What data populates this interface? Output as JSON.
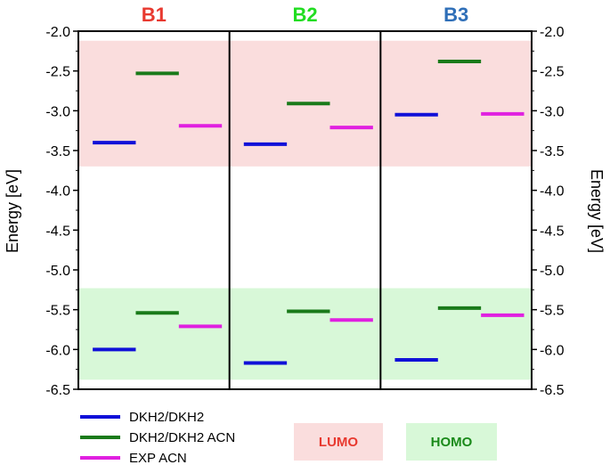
{
  "chart_data": {
    "type": "scatter",
    "chart_style": "energy-level diagram",
    "panels": [
      "B1",
      "B2",
      "B3"
    ],
    "panel_title_colors": [
      "#e8392f",
      "#22dd22",
      "#2f6fb8"
    ],
    "ylabel_left": "Energy [eV]",
    "ylabel_right": "Energy [eV]",
    "ylim": [
      -6.5,
      -2.0
    ],
    "y_ticks": [
      "-2.0",
      "-2.5",
      "-3.0",
      "-3.5",
      "-4.0",
      "-4.5",
      "-5.0",
      "-5.5",
      "-6.0",
      "-6.5"
    ],
    "y_tick_values": [
      -2.0,
      -2.5,
      -3.0,
      -3.5,
      -4.0,
      -4.5,
      -5.0,
      -5.5,
      -6.0,
      -6.5
    ],
    "series": [
      {
        "name": "DKH2/DKH2",
        "color": "#1010d8",
        "lumo": [
          -3.4,
          -3.42,
          -3.05
        ],
        "homo": [
          -6.0,
          -6.17,
          -6.13
        ]
      },
      {
        "name": "DKH2/DKH2 ACN",
        "color": "#1a7a1a",
        "lumo": [
          -2.53,
          -2.91,
          -2.38
        ],
        "homo": [
          -5.54,
          -5.52,
          -5.48
        ]
      },
      {
        "name": "EXP ACN",
        "color": "#e020e0",
        "lumo": [
          -3.19,
          -3.21,
          -3.04
        ],
        "homo": [
          -5.71,
          -5.63,
          -5.57
        ]
      }
    ],
    "bands": [
      {
        "label": "LUMO",
        "range": [
          -3.7,
          -2.12
        ],
        "fill": "#fadddd",
        "text_color": "#e8392f"
      },
      {
        "label": "HOMO",
        "range": [
          -6.38,
          -5.23
        ],
        "fill": "#d8f8d8",
        "text_color": "#1a8a1a"
      }
    ]
  }
}
